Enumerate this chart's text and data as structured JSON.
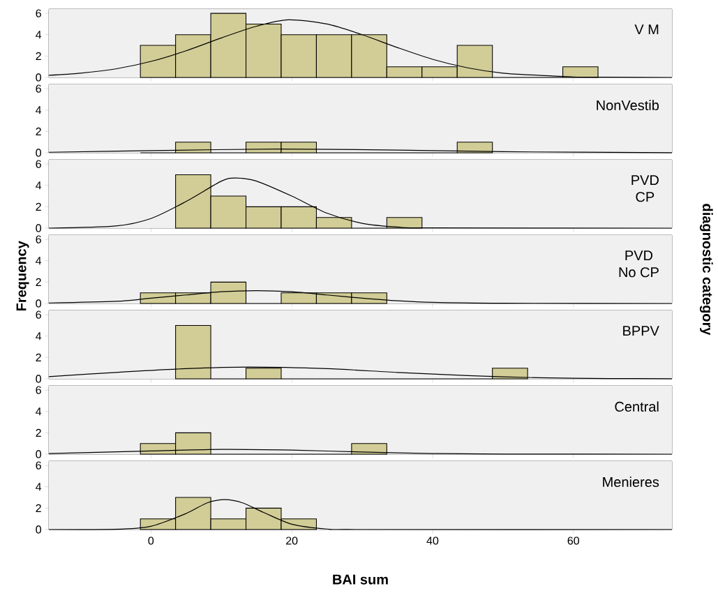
{
  "chart_data": [
    {
      "type": "histogram",
      "bins": [
        -1.5,
        3.5,
        8.5,
        13.5,
        18.5,
        23.5,
        28.5,
        33.5,
        38.5,
        43.5,
        48.5,
        53.5,
        58.5,
        63.5
      ],
      "values": [
        3,
        4,
        6,
        5,
        4,
        4,
        4,
        1,
        1,
        3,
        0,
        0,
        1
      ],
      "color": "#d2cd96",
      "xlim": [
        -14.5,
        74
      ],
      "ylim": [
        0,
        6.4
      ],
      "xticks": [
        0,
        20,
        40,
        60
      ],
      "yticks": [
        0,
        2,
        4,
        6
      ],
      "tick_labels": "y",
      "annotations": [
        "V M"
      ],
      "series": [
        {
          "type": "line",
          "color": "#000000",
          "x": [
            -14.5,
            -10,
            -5,
            0,
            5,
            10,
            15,
            19.5,
            25,
            30,
            35,
            40,
            45,
            50,
            55,
            60,
            65,
            74
          ],
          "values": [
            0.2,
            0.4,
            0.8,
            1.5,
            2.5,
            3.7,
            4.8,
            5.4,
            5.0,
            4.0,
            2.8,
            1.7,
            0.9,
            0.4,
            0.2,
            0.05,
            0.02,
            0
          ]
        }
      ]
    },
    {
      "type": "histogram",
      "bins": [
        -1.5,
        3.5,
        8.5,
        13.5,
        18.5,
        23.5,
        28.5,
        33.5,
        38.5,
        43.5,
        48.5
      ],
      "values": [
        0,
        1,
        0,
        1,
        1,
        0,
        0,
        0,
        0,
        1
      ],
      "color": "#d2cd96",
      "xlim": [
        -14.5,
        74
      ],
      "ylim": [
        0,
        6.4
      ],
      "xticks": [
        0,
        20,
        40,
        60
      ],
      "yticks": [
        0,
        2,
        4,
        6
      ],
      "tick_labels": "y",
      "annotations": [
        "NonVestib"
      ],
      "series": [
        {
          "type": "line",
          "color": "#000000",
          "x": [
            -14.5,
            0,
            18,
            35,
            50,
            74
          ],
          "values": [
            0.05,
            0.2,
            0.35,
            0.25,
            0.1,
            0.01
          ]
        }
      ]
    },
    {
      "type": "histogram",
      "bins": [
        3.5,
        8.5,
        13.5,
        18.5,
        23.5,
        28.5,
        33.5,
        38.5
      ],
      "values": [
        5,
        3,
        2,
        2,
        1,
        0,
        1
      ],
      "color": "#d2cd96",
      "xlim": [
        -14.5,
        74
      ],
      "ylim": [
        0,
        6.4
      ],
      "xticks": [
        0,
        20,
        40,
        60
      ],
      "yticks": [
        0,
        2,
        4,
        6
      ],
      "tick_labels": "y",
      "annotations": [
        "PVD",
        "CP"
      ],
      "series": [
        {
          "type": "line",
          "color": "#000000",
          "x": [
            -14.5,
            -5,
            0,
            5,
            10,
            12,
            15,
            20,
            25,
            30,
            35,
            40,
            74
          ],
          "values": [
            0,
            0.2,
            0.9,
            2.5,
            4.4,
            4.7,
            4.4,
            3.0,
            1.4,
            0.45,
            0.1,
            0.02,
            0
          ]
        }
      ]
    },
    {
      "type": "histogram",
      "bins": [
        -1.5,
        3.5,
        8.5,
        13.5,
        18.5,
        23.5,
        28.5,
        33.5
      ],
      "values": [
        1,
        1,
        2,
        0,
        1,
        1,
        1
      ],
      "color": "#d2cd96",
      "xlim": [
        -14.5,
        74
      ],
      "ylim": [
        0,
        6.4
      ],
      "xticks": [
        0,
        20,
        40,
        60
      ],
      "yticks": [
        0,
        2,
        4,
        6
      ],
      "tick_labels": "y",
      "annotations": [
        "PVD",
        "No CP"
      ],
      "ylabel": "Frequency",
      "y2label": "diagnostic category",
      "series": [
        {
          "type": "line",
          "color": "#000000",
          "x": [
            -14.5,
            -5,
            0,
            5,
            10,
            15,
            20,
            25,
            30,
            35,
            40,
            50,
            74
          ],
          "values": [
            0.05,
            0.2,
            0.5,
            0.8,
            1.1,
            1.2,
            1.1,
            0.8,
            0.5,
            0.25,
            0.1,
            0.02,
            0
          ]
        }
      ]
    },
    {
      "type": "histogram",
      "bins": [
        3.5,
        8.5,
        13.5,
        18.5,
        23.5,
        28.5,
        33.5,
        38.5,
        43.5,
        48.5,
        53.5
      ],
      "values": [
        5,
        0,
        1,
        0,
        0,
        0,
        0,
        0,
        0,
        1
      ],
      "color": "#d2cd96",
      "xlim": [
        -14.5,
        74
      ],
      "ylim": [
        0,
        6.4
      ],
      "xticks": [
        0,
        20,
        40,
        60
      ],
      "yticks": [
        0,
        2,
        4,
        6
      ],
      "tick_labels": "y",
      "annotations": [
        "BPPV"
      ],
      "series": [
        {
          "type": "line",
          "color": "#000000",
          "x": [
            -14.5,
            -5,
            5,
            14,
            25,
            35,
            45,
            55,
            65,
            74
          ],
          "values": [
            0.2,
            0.6,
            0.95,
            1.1,
            0.95,
            0.6,
            0.3,
            0.1,
            0.03,
            0.01
          ]
        }
      ]
    },
    {
      "type": "histogram",
      "bins": [
        -1.5,
        3.5,
        8.5,
        13.5,
        18.5,
        23.5,
        28.5,
        33.5
      ],
      "values": [
        1,
        2,
        0,
        0,
        0,
        0,
        1
      ],
      "color": "#d2cd96",
      "xlim": [
        -14.5,
        74
      ],
      "ylim": [
        0,
        6.4
      ],
      "xticks": [
        0,
        20,
        40,
        60
      ],
      "yticks": [
        0,
        2,
        4,
        6
      ],
      "tick_labels": "y",
      "annotations": [
        "Central"
      ],
      "series": [
        {
          "type": "line",
          "color": "#000000",
          "x": [
            -14.5,
            0,
            10,
            20,
            30,
            40,
            50,
            74
          ],
          "values": [
            0.06,
            0.3,
            0.45,
            0.38,
            0.2,
            0.06,
            0.01,
            0
          ]
        }
      ]
    },
    {
      "type": "histogram",
      "bins": [
        -1.5,
        3.5,
        8.5,
        13.5,
        18.5,
        23.5
      ],
      "values": [
        1,
        3,
        1,
        2,
        1
      ],
      "color": "#d2cd96",
      "xlim": [
        -14.5,
        74
      ],
      "ylim": [
        0,
        6.4
      ],
      "xticks": [
        0,
        20,
        40,
        60
      ],
      "yticks": [
        0,
        2,
        4,
        6
      ],
      "annotations": [
        "Menieres"
      ],
      "xlabel": "BAI sum",
      "series": [
        {
          "type": "line",
          "color": "#000000",
          "x": [
            -14.5,
            -5,
            0,
            5,
            8,
            10.5,
            13,
            16,
            20,
            25,
            30,
            74
          ],
          "values": [
            0,
            0.02,
            0.3,
            1.5,
            2.5,
            2.8,
            2.5,
            1.6,
            0.5,
            0.05,
            0,
            0
          ]
        }
      ]
    }
  ]
}
